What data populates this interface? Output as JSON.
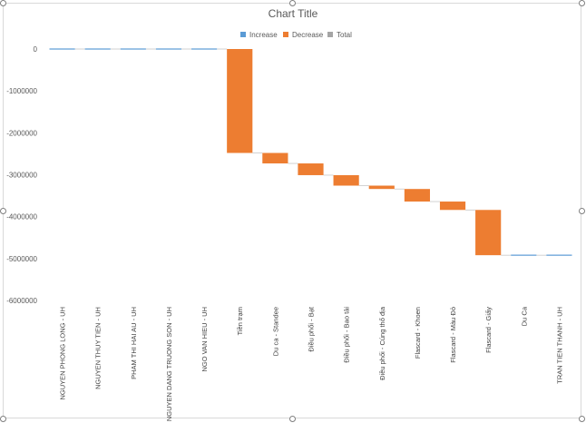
{
  "chart_data": {
    "type": "waterfall",
    "title": "Chart Title",
    "legend": {
      "position": "top",
      "entries": [
        {
          "name": "Increase",
          "color": "#5b9bd5"
        },
        {
          "name": "Decrease",
          "color": "#ed7d31"
        },
        {
          "name": "Total",
          "color": "#a5a5a5"
        }
      ]
    },
    "ylim": [
      -6000000,
      0
    ],
    "yticks": [
      0,
      -1000000,
      -2000000,
      -3000000,
      -4000000,
      -5000000,
      -6000000
    ],
    "ytick_labels": [
      "0",
      "-1000000",
      "-2000000",
      "-3000000",
      "-4000000",
      "-5000000",
      "-6000000"
    ],
    "categories": [
      "NGUYEN PHONG LONG - UH",
      "NGUYEN THUY TIEN - UH",
      "PHAM THI HAI AU - UH",
      "NGUYEN DANG TRUONG SON - UH",
      "NGO VAN HIEU - UH",
      "Tiền trạm",
      "Du ca - Standee",
      "Điều phối - Bạt",
      "Điều phối - Bao tải",
      "Điều phối - Cúng thổ địa",
      "Flascard - Khoen",
      "Flascard - Màu Đỏ",
      "Flascard - Giấy",
      "Du Ca",
      "TRAN TIEN THANH - UH"
    ],
    "values": [
      0,
      0,
      0,
      0,
      0,
      -2480000,
      -250000,
      -280000,
      -250000,
      -80000,
      -300000,
      -200000,
      -1080000,
      0,
      0
    ],
    "series_colors": {
      "increase": "#5b9bd5",
      "decrease": "#ed7d31",
      "total": "#a5a5a5"
    },
    "grid": false
  }
}
